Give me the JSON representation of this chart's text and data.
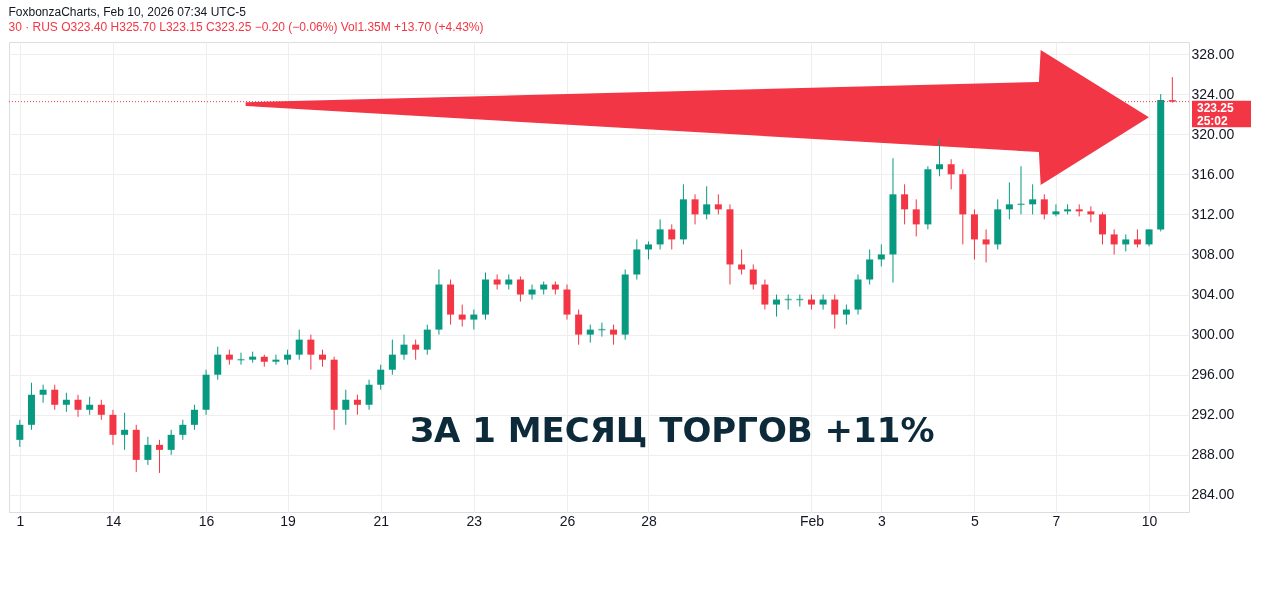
{
  "chart_data": {
    "type": "candlestick",
    "title": "FoxbonzaCharts, Feb 10, 2026 07:34 UTC-5",
    "subtitle": "30 · RUS  O323.40 H325.70 L323.15 C323.25 −0.20 (−0.06%) Vol1.35M +13.70 (+4.43%)",
    "categories": [
      "1",
      null,
      null,
      null,
      null,
      null,
      null,
      null,
      "14",
      null,
      null,
      null,
      null,
      null,
      null,
      null,
      "16",
      null,
      null,
      null,
      null,
      null,
      null,
      "19",
      null,
      null,
      null,
      null,
      null,
      null,
      null,
      "21",
      null,
      null,
      null,
      null,
      null,
      null,
      null,
      "23",
      null,
      null,
      null,
      null,
      null,
      null,
      null,
      "26",
      null,
      null,
      null,
      null,
      null,
      null,
      "28",
      null,
      null,
      null,
      null,
      null,
      null,
      null,
      null,
      null,
      null,
      null,
      null,
      null,
      "Feb",
      null,
      null,
      null,
      null,
      null,
      "3",
      null,
      null,
      null,
      null,
      null,
      null,
      null,
      "5",
      null,
      null,
      null,
      null,
      null,
      null,
      "7",
      null,
      null,
      null,
      null,
      null,
      null,
      null,
      "10",
      null,
      null
    ],
    "ohlc": [
      [
        289.5,
        291.5,
        288.8,
        291
      ],
      [
        291,
        295.2,
        290.5,
        294
      ],
      [
        294,
        295,
        293.2,
        294.5
      ],
      [
        294.5,
        295,
        292.5,
        293
      ],
      [
        293,
        294.2,
        292.3,
        293.5
      ],
      [
        293.5,
        294,
        291.8,
        292.5
      ],
      [
        292.5,
        293.8,
        292,
        293
      ],
      [
        293,
        293.5,
        291.5,
        292
      ],
      [
        292,
        292.5,
        289,
        290
      ],
      [
        290,
        292.2,
        288.5,
        290.5
      ],
      [
        290.5,
        291,
        286.3,
        287.5
      ],
      [
        287.5,
        289.8,
        287,
        289
      ],
      [
        289,
        289.5,
        286.2,
        288.5
      ],
      [
        288.5,
        290.5,
        288,
        290
      ],
      [
        290,
        291.5,
        289.5,
        291
      ],
      [
        291,
        293,
        290.5,
        292.5
      ],
      [
        292.5,
        296.5,
        292,
        296
      ],
      [
        296,
        298.8,
        295.5,
        298
      ],
      [
        298,
        298.5,
        297,
        297.5
      ],
      [
        297.5,
        298.2,
        297,
        297.5
      ],
      [
        297.5,
        298.3,
        297.2,
        297.8
      ],
      [
        297.8,
        298,
        296.8,
        297.3
      ],
      [
        297.3,
        298,
        297,
        297.5
      ],
      [
        297.5,
        298.5,
        297,
        298
      ],
      [
        298,
        300.5,
        297.5,
        299.5
      ],
      [
        299.5,
        300,
        296.5,
        298
      ],
      [
        298,
        298.5,
        296.8,
        297.5
      ],
      [
        297.5,
        297.8,
        290.5,
        292.5
      ],
      [
        292.5,
        294.5,
        291,
        293.5
      ],
      [
        293.5,
        294,
        292,
        293
      ],
      [
        293,
        295.5,
        292.5,
        295
      ],
      [
        295,
        297,
        294.5,
        296.5
      ],
      [
        296.5,
        299.5,
        296,
        298
      ],
      [
        298,
        300,
        297.5,
        299
      ],
      [
        299,
        299.5,
        297.5,
        298.5
      ],
      [
        298.5,
        301,
        298,
        300.5
      ],
      [
        300.5,
        306.5,
        300,
        305
      ],
      [
        305,
        305.5,
        301,
        302
      ],
      [
        302,
        303,
        300.8,
        301.5
      ],
      [
        301.5,
        302.5,
        300.5,
        302
      ],
      [
        302,
        306.2,
        301.5,
        305.5
      ],
      [
        305.5,
        306,
        304.5,
        305
      ],
      [
        305,
        306,
        304.5,
        305.5
      ],
      [
        305.5,
        305.8,
        303.3,
        304
      ],
      [
        304,
        305,
        303.5,
        304.5
      ],
      [
        304.5,
        305.3,
        304,
        305
      ],
      [
        305,
        305.3,
        304,
        304.5
      ],
      [
        304.5,
        305,
        301.5,
        302
      ],
      [
        302,
        302.5,
        299,
        300
      ],
      [
        300,
        301,
        299.2,
        300.5
      ],
      [
        300.5,
        301.2,
        299.8,
        300.5
      ],
      [
        300.5,
        301,
        299,
        300
      ],
      [
        300,
        306.5,
        299.5,
        306
      ],
      [
        306,
        309.5,
        305.5,
        308.5
      ],
      [
        308.5,
        309.3,
        307.5,
        309
      ],
      [
        309,
        311.5,
        308.5,
        310.5
      ],
      [
        310.5,
        311,
        308.5,
        309.5
      ],
      [
        309.5,
        315,
        309,
        313.5
      ],
      [
        313.5,
        314,
        311,
        312
      ],
      [
        312,
        314.8,
        311.5,
        313
      ],
      [
        313,
        314,
        312,
        312.5
      ],
      [
        312.5,
        313,
        305,
        307
      ],
      [
        307,
        308.5,
        306,
        306.5
      ],
      [
        306.5,
        307,
        304.5,
        305
      ],
      [
        305,
        305.5,
        302.5,
        303
      ],
      [
        303,
        304,
        301.8,
        303.5
      ],
      [
        303.5,
        304,
        302.5,
        303.5
      ],
      [
        303.5,
        304,
        302.8,
        303.5
      ],
      [
        303.5,
        304,
        302.5,
        303
      ],
      [
        303,
        304,
        302.5,
        303.5
      ],
      [
        303.5,
        304,
        300.6,
        302
      ],
      [
        302,
        303,
        301,
        302.5
      ],
      [
        302.5,
        306,
        302,
        305.5
      ],
      [
        305.5,
        308.5,
        305,
        307.5
      ],
      [
        307.5,
        309,
        306.8,
        308
      ],
      [
        308,
        317.6,
        305.2,
        314
      ],
      [
        314,
        315,
        311,
        312.5
      ],
      [
        312.5,
        313.5,
        309.8,
        311
      ],
      [
        311,
        316.8,
        310.5,
        316.5
      ],
      [
        316.5,
        319.5,
        315.8,
        317
      ],
      [
        317,
        317.5,
        314.5,
        316
      ],
      [
        316,
        316.5,
        309,
        312
      ],
      [
        312,
        312.5,
        307.5,
        309.5
      ],
      [
        309.5,
        310.5,
        307.2,
        309
      ],
      [
        309,
        313.5,
        308.5,
        312.5
      ],
      [
        312.5,
        315.2,
        311.5,
        313
      ],
      [
        313,
        316.8,
        312,
        313
      ],
      [
        313,
        315,
        312,
        313.5
      ],
      [
        313.5,
        314,
        311.5,
        312
      ],
      [
        312,
        313,
        311.8,
        312.3
      ],
      [
        312.3,
        313,
        312,
        312.5
      ],
      [
        312.5,
        313,
        311.8,
        312.3
      ],
      [
        312.3,
        312.8,
        311.2,
        312
      ],
      [
        312,
        312.2,
        309,
        310
      ],
      [
        310,
        310.5,
        308,
        309
      ],
      [
        309,
        310,
        308.3,
        309.5
      ],
      [
        309.5,
        310.5,
        308.7,
        309
      ],
      [
        309,
        310.5,
        308.8,
        310.5
      ],
      [
        310.5,
        324,
        310.3,
        323.4
      ],
      [
        323.4,
        325.7,
        323.15,
        323.25
      ]
    ],
    "ylim": [
      282.3,
      329.2
    ],
    "yticks": [
      {
        "value": 284,
        "label": "284.00"
      },
      {
        "value": 288,
        "label": "288.00"
      },
      {
        "value": 292,
        "label": "292.00"
      },
      {
        "value": 296,
        "label": "296.00"
      },
      {
        "value": 300,
        "label": "300.00"
      },
      {
        "value": 304,
        "label": "304.00"
      },
      {
        "value": 308,
        "label": "308.00"
      },
      {
        "value": 312,
        "label": "312.00"
      },
      {
        "value": 316,
        "label": "316.00"
      },
      {
        "value": 320,
        "label": "320.00"
      },
      {
        "value": 324,
        "label": "324.00"
      },
      {
        "value": 328,
        "label": "328.00"
      }
    ],
    "grid": true,
    "ref_lines": [
      {
        "axis": "y",
        "value": 323.25,
        "label": "323.25",
        "color": "#f23645",
        "line_style": "dotted"
      }
    ],
    "annotations": [
      "ЗА 1 МЕСЯЦ ТОРГОВ +11%",
      "25:02"
    ]
  }
}
